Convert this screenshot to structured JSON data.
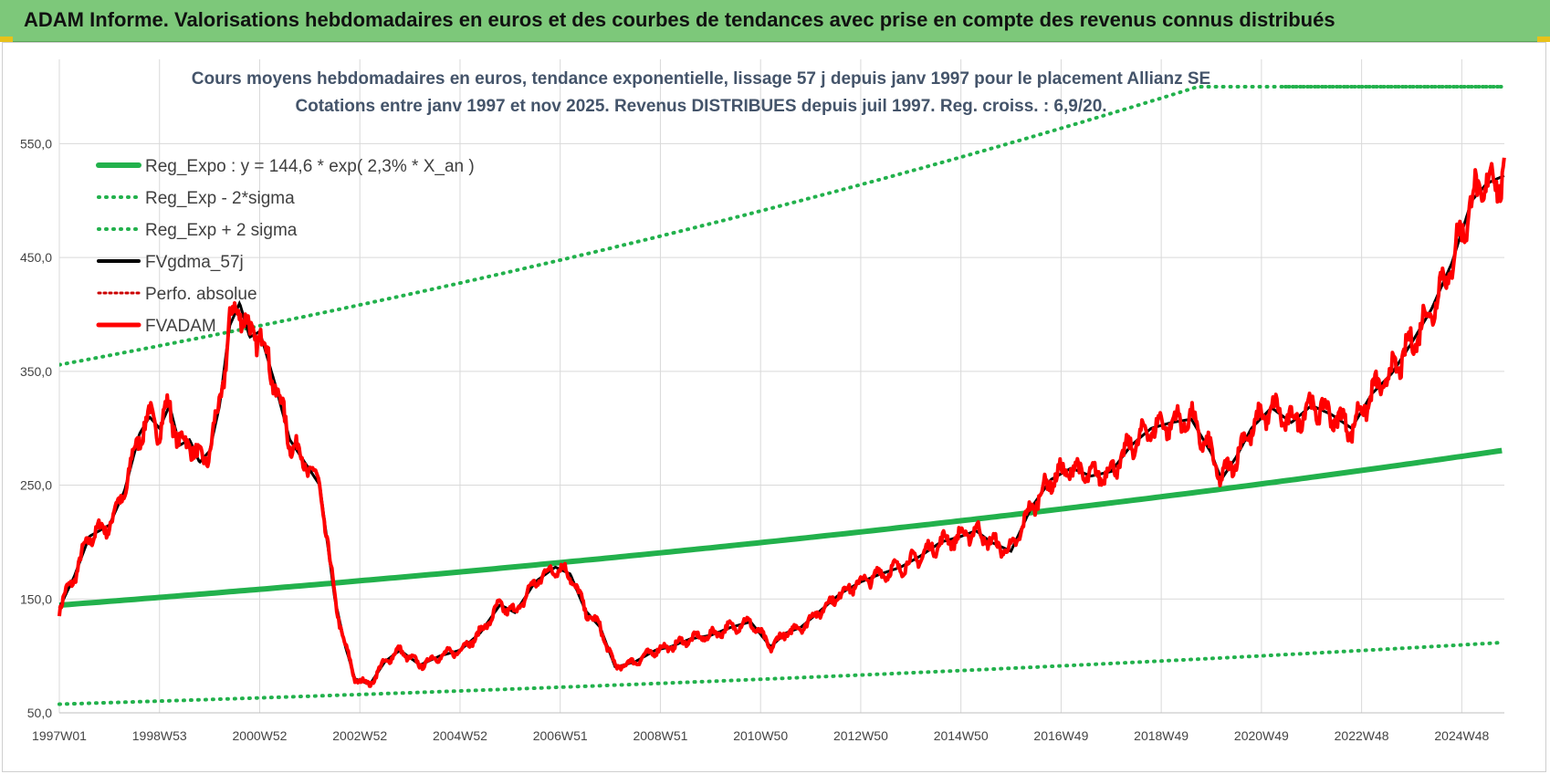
{
  "header": {
    "title": "ADAM Informe. Valorisations hebdomadaires en euros et des courbes de tendances avec prise en compte des revenus connus distribués"
  },
  "colors": {
    "banner": "#7dc87a",
    "reg_expo": "#22b14c",
    "sigma": "#22b14c",
    "fvgdma": "#000000",
    "perfo": "#cc0000",
    "fvadam": "#ff0000",
    "grid": "#d9d9d9"
  },
  "chart_data": {
    "type": "line",
    "title_line1": "Cours moyens hebdomadaires en euros, tendance exponentielle, lissage 57 j depuis janv 1997  pour le placement Allianz SE",
    "title_line2": "Cotations entre janv 1997 et nov 2025. Revenus DISTRIBUES depuis juil 1997. Reg. croiss. : 6,9/20.",
    "xlabel": "",
    "ylabel": "",
    "x_range": [
      1997.0,
      2025.85
    ],
    "ylim": [
      50,
      600
    ],
    "yticks": [
      "50,0",
      "150,0",
      "250,0",
      "350,0",
      "450,0",
      "550,0"
    ],
    "ytick_values": [
      50,
      150,
      250,
      350,
      450,
      550
    ],
    "xtick_labels": [
      "1997W01",
      "1998W53",
      "2000W52",
      "2002W52",
      "2004W52",
      "2006W51",
      "2008W51",
      "2010W50",
      "2012W50",
      "2014W50",
      "2016W49",
      "2018W49",
      "2020W49",
      "2022W48",
      "2024W48"
    ],
    "xtick_values": [
      1997.0,
      1999.0,
      2001.0,
      2003.0,
      2005.0,
      2007.0,
      2009.0,
      2011.0,
      2013.0,
      2015.0,
      2017.0,
      2019.0,
      2021.0,
      2023.0,
      2025.0
    ],
    "grid": true,
    "legend_position": "top-left",
    "regression": {
      "a": 144.6,
      "rate": 0.023,
      "sigma_factor": 2.46
    },
    "series": [
      {
        "name": "Reg_Expo : y = 144,6 * exp( 2,3% *  X_an )",
        "style": "solid-thick",
        "color": "#22b14c"
      },
      {
        "name": "Reg_Exp - 2*sigma",
        "style": "dotted",
        "color": "#22b14c"
      },
      {
        "name": "Reg_Exp + 2 sigma",
        "style": "dotted",
        "color": "#22b14c"
      },
      {
        "name": "FVgdma_57j",
        "style": "solid",
        "color": "#000000"
      },
      {
        "name": "Perfo. absolue",
        "style": "dotted",
        "color": "#cc0000"
      },
      {
        "name": "FVADAM",
        "style": "solid",
        "color": "#ff0000"
      }
    ],
    "price_x": [
      1997.0,
      1997.3,
      1997.6,
      1998.0,
      1998.3,
      1998.6,
      1998.8,
      1999.0,
      1999.2,
      1999.4,
      1999.6,
      1999.8,
      2000.0,
      2000.2,
      2000.4,
      2000.6,
      2000.8,
      2001.0,
      2001.3,
      2001.6,
      2001.9,
      2002.2,
      2002.5,
      2002.7,
      2002.9,
      2003.2,
      2003.5,
      2003.8,
      2004.2,
      2004.6,
      2005.0,
      2005.4,
      2005.8,
      2006.1,
      2006.5,
      2006.9,
      2007.2,
      2007.5,
      2007.8,
      2008.1,
      2008.5,
      2008.9,
      2009.2,
      2009.6,
      2010.0,
      2010.4,
      2010.8,
      2011.2,
      2011.5,
      2011.8,
      2012.2,
      2012.6,
      2013.0,
      2013.4,
      2013.8,
      2014.2,
      2014.6,
      2015.0,
      2015.3,
      2015.6,
      2016.0,
      2016.4,
      2016.8,
      2017.2,
      2017.6,
      2018.0,
      2018.4,
      2018.8,
      2019.2,
      2019.6,
      2020.0,
      2020.2,
      2020.5,
      2020.8,
      2021.2,
      2021.6,
      2022.0,
      2022.4,
      2022.8,
      2023.2,
      2023.6,
      2024.0,
      2024.4,
      2024.8,
      2025.2,
      2025.5,
      2025.85
    ],
    "price_y": [
      142,
      170,
      205,
      215,
      245,
      295,
      310,
      300,
      320,
      285,
      290,
      270,
      280,
      320,
      390,
      410,
      380,
      385,
      340,
      290,
      270,
      250,
      150,
      110,
      80,
      75,
      95,
      105,
      92,
      100,
      105,
      120,
      145,
      138,
      165,
      178,
      172,
      140,
      125,
      90,
      95,
      105,
      108,
      115,
      118,
      125,
      130,
      108,
      120,
      125,
      140,
      155,
      165,
      172,
      178,
      188,
      200,
      205,
      210,
      200,
      192,
      230,
      255,
      265,
      258,
      262,
      285,
      300,
      305,
      308,
      278,
      255,
      275,
      300,
      318,
      305,
      320,
      312,
      300,
      330,
      348,
      375,
      405,
      445,
      500,
      515,
      522
    ]
  }
}
